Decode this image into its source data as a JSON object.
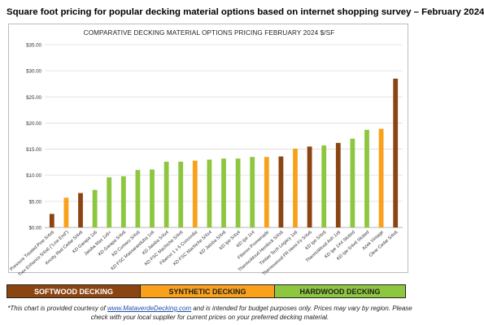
{
  "page_title": "Square foot pricing for popular decking material options based on internet shopping survey – February 2024",
  "chart_data": {
    "type": "bar",
    "title": "COMPARATIVE DECKING MATERIAL OPTIONS PRICING FEBRUARY 2024 $/SF",
    "ylim": [
      0,
      35
    ],
    "yticks": [
      "$0.00",
      "$5.00",
      "$10.00",
      "$15.00",
      "$20.00",
      "$25.00",
      "$30.00",
      "$35.00"
    ],
    "grid": true,
    "categories": [
      "Pressure Treated Pine 5/4x6",
      "Trex Enhance 5/4x6 (\"Low End\")",
      "Knotty Red Cedar 5/4x6",
      "KD Garapa 1x6",
      "Jatoba Max 1x6+",
      "KD Garapa 5/4x6",
      "KD Cumaru 5/4x6",
      "KD FSC Massaranduba 1x6",
      "KD Jatoba 5/4x4",
      "KD FSC Machiche 5/4x6",
      "Fiberon 1 x 6 Concordia",
      "KD FSC Machiche 5/4x4",
      "KD Jatoba 5/4x6",
      "KD Ipe 5/4x4",
      "KD Ipe 1x4",
      "Fiberon Promenade",
      "ThermoWood Hemlock 5/4x6",
      "Timber Tech Legacy 1x6",
      "Thermowood FR Hemi Fir 5/4x6",
      "KD Ipe 5/4x6",
      "ThermoWood Ash 1x6",
      "KD Ipe 1X4 Slotted",
      "KD Ipe 5/4x6 Slotted",
      "Azek Vintage",
      "Clear Cedar 5/4x6"
    ],
    "values": [
      2.6,
      5.7,
      6.6,
      7.2,
      9.6,
      9.8,
      11.0,
      11.1,
      12.6,
      12.6,
      12.8,
      13.0,
      13.2,
      13.2,
      13.5,
      13.5,
      13.6,
      15.1,
      15.5,
      15.7,
      16.2,
      17.0,
      18.7,
      18.9,
      28.5
    ],
    "bar_groups": [
      "softwood",
      "synthetic",
      "softwood",
      "hardwood",
      "hardwood",
      "hardwood",
      "hardwood",
      "hardwood",
      "hardwood",
      "hardwood",
      "synthetic",
      "hardwood",
      "hardwood",
      "hardwood",
      "hardwood",
      "synthetic",
      "softwood",
      "synthetic",
      "softwood",
      "hardwood",
      "softwood",
      "hardwood",
      "hardwood",
      "synthetic",
      "softwood"
    ],
    "colors": {
      "softwood": "#8b4513",
      "synthetic": "#f9a11b",
      "hardwood": "#8dc63f"
    }
  },
  "legend": {
    "softwood": "SOFTWOOD DECKING",
    "synthetic": "SYNTHETIC DECKING",
    "hardwood": "HARDWOOD DECKING"
  },
  "footnote": {
    "prefix": "*This chart is provided courtesy of ",
    "link": "www.MataverdeDecking.com",
    "suffix": " and is intended for budget purposes only. Prices may vary by region.  Please check with your local supplier for current prices on your preferred decking material."
  }
}
